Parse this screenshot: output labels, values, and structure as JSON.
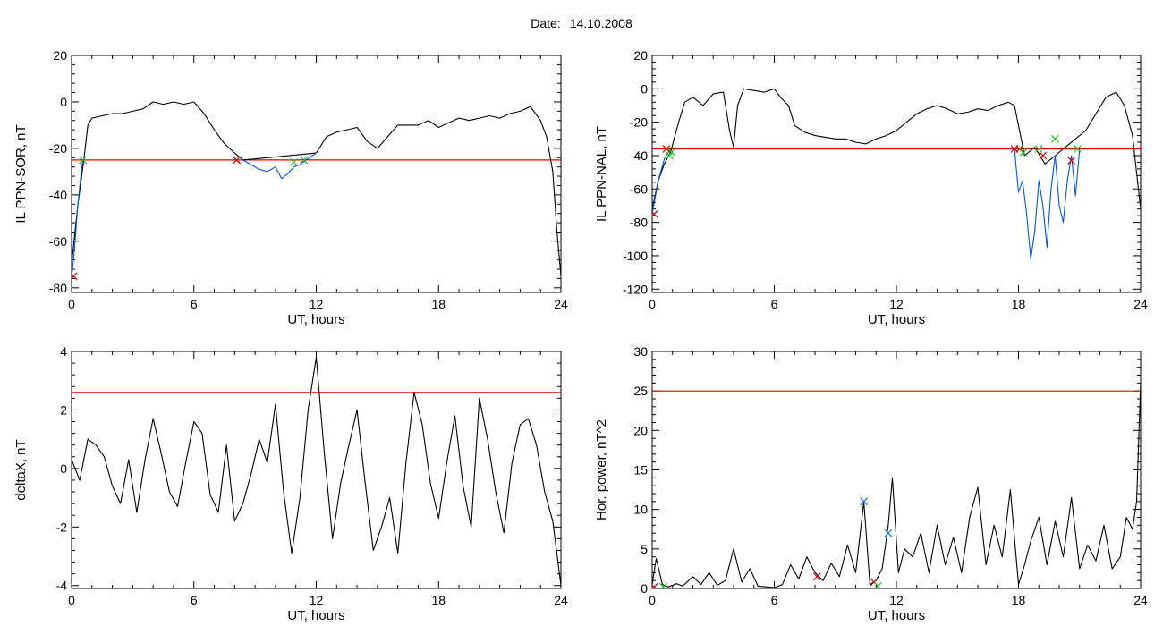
{
  "header": {
    "date_label": "Date:",
    "date_value": "14.10.2008"
  },
  "colors": {
    "trace": "#000000",
    "threshold": "#dd0000",
    "disturbed": "#0055dd",
    "marker_start": "#cc0000",
    "marker_end": "#22bb22",
    "marker_peak": "#1177dd"
  },
  "chart_data": [
    {
      "id": "sor",
      "type": "line",
      "xlabel": "UT, hours",
      "ylabel": "IL PPN-SOR, nT",
      "xlim": [
        0,
        24
      ],
      "ylim": [
        -82,
        20
      ],
      "xticks": [
        0,
        6,
        12,
        18,
        24
      ],
      "yticks": [
        -80,
        -60,
        -40,
        -20,
        0,
        20
      ],
      "threshold": -25,
      "series": [
        {
          "color_key": "trace",
          "x": [
            0,
            0.3,
            0.6,
            0.8,
            1,
            1.5,
            2,
            2.5,
            3,
            3.5,
            4,
            4.5,
            5,
            5.5,
            6,
            6.5,
            7,
            7.5,
            8,
            8.4,
            12,
            12.5,
            13,
            13.5,
            14,
            14.5,
            15,
            15.5,
            16,
            16.5,
            17,
            17.5,
            18,
            18.5,
            19,
            19.5,
            20,
            20.5,
            21,
            21.5,
            22,
            22.5,
            23,
            23.3,
            23.6,
            23.8,
            24
          ],
          "y": [
            -70,
            -45,
            -25,
            -10,
            -7,
            -6,
            -5,
            -5,
            -4,
            -3,
            0,
            -1,
            0,
            -1,
            0,
            -5,
            -12,
            -18,
            -22,
            -25,
            -22,
            -15,
            -13,
            -12,
            -11,
            -17,
            -20,
            -15,
            -10,
            -10,
            -10,
            -8,
            -11,
            -9,
            -7,
            -8,
            -7,
            -6,
            -7,
            -5,
            -4,
            -2,
            -8,
            -15,
            -30,
            -55,
            -75
          ]
        },
        {
          "color_key": "disturbed",
          "x": [
            0,
            0.15,
            0.3,
            0.45,
            0.55
          ],
          "y": [
            -76,
            -63,
            -45,
            -32,
            -25
          ]
        },
        {
          "color_key": "disturbed",
          "x": [
            8.4,
            8.8,
            9.2,
            9.6,
            10,
            10.3,
            10.6,
            10.9,
            11.2,
            11.5,
            12
          ],
          "y": [
            -25,
            -27,
            -29,
            -30,
            -28,
            -33,
            -31,
            -28,
            -27,
            -25,
            -22
          ]
        }
      ],
      "markers": [
        {
          "x": 0.1,
          "y": -75,
          "color_key": "marker_start"
        },
        {
          "x": 0.55,
          "y": -25,
          "color_key": "marker_end"
        },
        {
          "x": 8.1,
          "y": -25,
          "color_key": "marker_start"
        },
        {
          "x": 10.9,
          "y": -26,
          "color_key": "marker_end"
        },
        {
          "x": 11.4,
          "y": -25,
          "color_key": "marker_end"
        }
      ]
    },
    {
      "id": "nal",
      "type": "line",
      "xlabel": "UT, hours",
      "ylabel": "IL PPN-NAL, nT",
      "xlim": [
        0,
        24
      ],
      "ylim": [
        -122,
        20
      ],
      "xticks": [
        0,
        6,
        12,
        18,
        24
      ],
      "yticks": [
        -120,
        -100,
        -80,
        -60,
        -40,
        -20,
        0,
        20
      ],
      "threshold": -36,
      "series": [
        {
          "color_key": "trace",
          "x": [
            0,
            0.3,
            0.6,
            0.9,
            1.3,
            1.6,
            2,
            2.5,
            3,
            3.5,
            3.8,
            4,
            4.2,
            4.5,
            5,
            5.5,
            6,
            6.3,
            6.7,
            7,
            7.5,
            8,
            8.5,
            9,
            9.5,
            10,
            10.5,
            11,
            11.5,
            12,
            12.5,
            13,
            13.5,
            14,
            14.5,
            15,
            15.5,
            16,
            16.5,
            17,
            17.5,
            17.8,
            18.3,
            18.8,
            19.3,
            19.8,
            20.3,
            20.8,
            21.3,
            21.8,
            22.3,
            22.8,
            23.2,
            23.6,
            24
          ],
          "y": [
            -72,
            -55,
            -45,
            -38,
            -20,
            -8,
            -5,
            -10,
            -3,
            -2,
            -25,
            -35,
            -10,
            0,
            -1,
            -2,
            0,
            -5,
            -10,
            -22,
            -26,
            -28,
            -29,
            -30,
            -30,
            -32,
            -33,
            -30,
            -28,
            -25,
            -20,
            -15,
            -12,
            -10,
            -12,
            -15,
            -14,
            -12,
            -13,
            -10,
            -8,
            -10,
            -40,
            -35,
            -45,
            -40,
            -35,
            -30,
            -25,
            -15,
            -5,
            -2,
            -10,
            -28,
            -72
          ]
        },
        {
          "color_key": "disturbed",
          "x": [
            0,
            0.3,
            0.6,
            0.9
          ],
          "y": [
            -75,
            -55,
            -42,
            -36
          ]
        },
        {
          "color_key": "disturbed",
          "x": [
            17.8,
            18,
            18.2,
            18.4,
            18.6,
            18.8,
            19.0,
            19.2,
            19.4,
            19.6,
            19.8,
            20.0,
            20.2,
            20.4,
            20.6,
            20.8,
            21.0
          ],
          "y": [
            -36,
            -62,
            -55,
            -75,
            -102,
            -85,
            -55,
            -70,
            -95,
            -60,
            -40,
            -70,
            -80,
            -55,
            -40,
            -64,
            -36
          ]
        }
      ],
      "markers": [
        {
          "x": 0.1,
          "y": -75,
          "color_key": "marker_start"
        },
        {
          "x": 0.7,
          "y": -36,
          "color_key": "marker_start"
        },
        {
          "x": 0.85,
          "y": -40,
          "color_key": "marker_end"
        },
        {
          "x": 0.95,
          "y": -38,
          "color_key": "marker_end"
        },
        {
          "x": 17.8,
          "y": -36,
          "color_key": "marker_start"
        },
        {
          "x": 18.05,
          "y": -36,
          "color_key": "marker_start"
        },
        {
          "x": 18.25,
          "y": -38,
          "color_key": "marker_end"
        },
        {
          "x": 19.0,
          "y": -36,
          "color_key": "marker_end"
        },
        {
          "x": 19.2,
          "y": -40,
          "color_key": "marker_start"
        },
        {
          "x": 19.8,
          "y": -30,
          "color_key": "marker_end"
        },
        {
          "x": 20.6,
          "y": -43,
          "color_key": "marker_start"
        },
        {
          "x": 20.9,
          "y": -36,
          "color_key": "marker_end"
        }
      ]
    },
    {
      "id": "deltax",
      "type": "line",
      "xlabel": "UT, hours",
      "ylabel": "deltaX, nT",
      "xlim": [
        0,
        24
      ],
      "ylim": [
        -4.1,
        4
      ],
      "xticks": [
        0,
        6,
        12,
        18,
        24
      ],
      "yticks": [
        -4,
        -2,
        0,
        2,
        4
      ],
      "threshold": 2.6,
      "series": [
        {
          "color_key": "trace",
          "x": [
            0,
            0.4,
            0.8,
            1.2,
            1.6,
            2.0,
            2.4,
            2.8,
            3.2,
            3.6,
            4.0,
            4.4,
            4.8,
            5.2,
            5.6,
            6.0,
            6.4,
            6.8,
            7.2,
            7.6,
            8.0,
            8.4,
            8.8,
            9.2,
            9.6,
            10.0,
            10.4,
            10.8,
            11.2,
            11.6,
            12.0,
            12.4,
            12.8,
            13.2,
            13.6,
            14.0,
            14.4,
            14.8,
            15.2,
            15.6,
            16.0,
            16.4,
            16.8,
            17.2,
            17.6,
            18.0,
            18.4,
            18.8,
            19.2,
            19.6,
            20.0,
            20.4,
            20.8,
            21.2,
            21.6,
            22.0,
            22.4,
            22.8,
            23.2,
            23.6,
            24.0
          ],
          "y": [
            0.3,
            -0.4,
            1.0,
            0.8,
            0.4,
            -0.6,
            -1.2,
            0.3,
            -1.5,
            0.3,
            1.7,
            0.5,
            -0.8,
            -1.3,
            0.2,
            1.6,
            1.2,
            -0.9,
            -1.5,
            0.8,
            -1.8,
            -1.2,
            -0.2,
            1.0,
            0.2,
            2.2,
            -0.8,
            -2.9,
            -1.0,
            2.0,
            3.8,
            0.5,
            -2.4,
            -0.5,
            0.8,
            2.0,
            -0.5,
            -2.8,
            -2.0,
            -1.0,
            -2.9,
            0.2,
            2.6,
            1.5,
            -0.5,
            -1.7,
            0.2,
            1.8,
            -0.6,
            -2.0,
            2.4,
            1.0,
            -0.8,
            -2.2,
            0.2,
            1.5,
            1.7,
            0.8,
            -0.8,
            -1.8,
            -4.0
          ]
        }
      ],
      "markers": []
    },
    {
      "id": "hpower",
      "type": "line",
      "xlabel": "UT, hours",
      "ylabel": "Hor. power, nT^2",
      "xlim": [
        0,
        24
      ],
      "ylim": [
        0,
        30
      ],
      "xticks": [
        0,
        6,
        12,
        18,
        24
      ],
      "yticks": [
        0,
        5,
        10,
        15,
        20,
        25,
        30
      ],
      "threshold": 25,
      "series": [
        {
          "color_key": "trace",
          "x": [
            0,
            0.2,
            0.5,
            0.8,
            1.2,
            1.5,
            2.0,
            2.4,
            2.8,
            3.2,
            3.6,
            4.0,
            4.4,
            4.8,
            5.2,
            5.6,
            6.0,
            6.4,
            6.8,
            7.2,
            7.6,
            8.0,
            8.4,
            8.8,
            9.2,
            9.6,
            10.0,
            10.4,
            10.7,
            11.0,
            11.3,
            11.6,
            11.8,
            12.1,
            12.4,
            12.8,
            13.2,
            13.6,
            14.0,
            14.4,
            14.8,
            15.2,
            15.6,
            16.0,
            16.4,
            16.8,
            17.2,
            17.6,
            18.0,
            18.3,
            18.6,
            19.0,
            19.4,
            19.8,
            20.2,
            20.6,
            21.0,
            21.4,
            21.8,
            22.2,
            22.6,
            23.0,
            23.3,
            23.6,
            23.8,
            24.0
          ],
          "y": [
            0.5,
            3.8,
            0.5,
            0.2,
            0.6,
            0.3,
            1.5,
            0.5,
            2.0,
            0.4,
            1.0,
            5.0,
            0.8,
            2.5,
            0.3,
            0.2,
            0.1,
            0.5,
            3.0,
            1.2,
            4.0,
            2.0,
            1.0,
            3.2,
            1.5,
            5.5,
            2.0,
            11.0,
            0.5,
            1.0,
            2.5,
            8.0,
            14.0,
            2.0,
            5.0,
            4.0,
            7.0,
            2.0,
            8.0,
            3.0,
            6.5,
            2.0,
            9.0,
            12.8,
            3.0,
            8.0,
            4.0,
            12.5,
            0.5,
            3.0,
            6.0,
            9.0,
            3.0,
            8.5,
            4.0,
            11.5,
            2.5,
            5.5,
            3.5,
            8.0,
            2.5,
            4.0,
            9.0,
            7.5,
            11.0,
            26.0
          ]
        }
      ],
      "markers": [
        {
          "x": 0.1,
          "y": 0.2,
          "color_key": "marker_start"
        },
        {
          "x": 0.55,
          "y": 0.2,
          "color_key": "marker_end"
        },
        {
          "x": 8.1,
          "y": 1.5,
          "color_key": "marker_start"
        },
        {
          "x": 10.4,
          "y": 11.0,
          "color_key": "marker_peak"
        },
        {
          "x": 10.9,
          "y": 0.8,
          "color_key": "marker_start"
        },
        {
          "x": 11.1,
          "y": 0.3,
          "color_key": "marker_end"
        },
        {
          "x": 11.6,
          "y": 7.0,
          "color_key": "marker_peak"
        }
      ]
    }
  ]
}
